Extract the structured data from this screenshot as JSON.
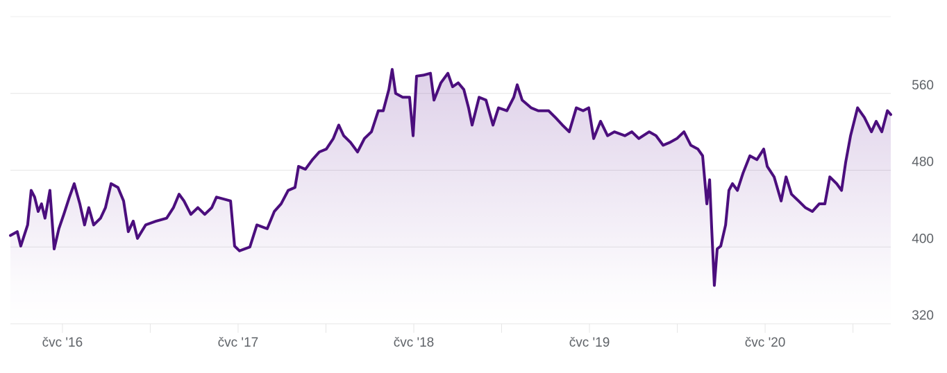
{
  "chart_data": {
    "type": "line",
    "series": [
      {
        "color": "#4b0e7d",
        "x": [
          2016.204,
          2016.243,
          2016.263,
          2016.302,
          2016.322,
          2016.342,
          2016.362,
          2016.381,
          2016.401,
          2016.429,
          2016.453,
          2016.48,
          2016.508,
          2016.54,
          2016.567,
          2016.599,
          2016.626,
          2016.65,
          2016.678,
          2016.717,
          2016.745,
          2016.777,
          2016.816,
          2016.848,
          2016.875,
          2016.903,
          2016.927,
          2016.974,
          2017.034,
          2017.093,
          2017.132,
          2017.164,
          2017.192,
          2017.231,
          2017.271,
          2017.31,
          2017.35,
          2017.377,
          2017.417,
          2017.457,
          2017.48,
          2017.508,
          2017.567,
          2017.607,
          2017.666,
          2017.706,
          2017.745,
          2017.785,
          2017.824,
          2017.844,
          2017.883,
          2017.923,
          2017.962,
          2018.002,
          2018.042,
          2018.073,
          2018.101,
          2018.14,
          2018.18,
          2018.219,
          2018.259,
          2018.298,
          2018.326,
          2018.358,
          2018.377,
          2018.397,
          2018.437,
          2018.476,
          2018.496,
          2018.516,
          2018.555,
          2018.595,
          2018.615,
          2018.654,
          2018.694,
          2018.721,
          2018.753,
          2018.785,
          2018.812,
          2018.832,
          2018.872,
          2018.911,
          2018.951,
          2018.982,
          2019.03,
          2019.069,
          2019.089,
          2019.117,
          2019.168,
          2019.208,
          2019.267,
          2019.306,
          2019.346,
          2019.385,
          2019.425,
          2019.464,
          2019.496,
          2019.524,
          2019.563,
          2019.603,
          2019.642,
          2019.702,
          2019.741,
          2019.781,
          2019.84,
          2019.879,
          2019.919,
          2019.958,
          2019.998,
          2020.038,
          2020.077,
          2020.117,
          2020.144,
          2020.168,
          2020.184,
          2020.196,
          2020.211,
          2020.227,
          2020.247,
          2020.275,
          2020.294,
          2020.314,
          2020.342,
          2020.374,
          2020.413,
          2020.453,
          2020.492,
          2020.512,
          2020.551,
          2020.591,
          2020.619,
          2020.65,
          2020.69,
          2020.729,
          2020.769,
          2020.808,
          2020.84,
          2020.868,
          2020.907,
          2020.935,
          2020.958,
          2020.986,
          2021.026,
          2021.065,
          2021.105,
          2021.132,
          2021.164,
          2021.196,
          2021.215
        ],
        "values": [
          412,
          416,
          401,
          423,
          459,
          452,
          437,
          445,
          430,
          459,
          398,
          419,
          434,
          452,
          466,
          445,
          423,
          441,
          423,
          430,
          441,
          466,
          462,
          448,
          416,
          427,
          409,
          423,
          427,
          430,
          441,
          455,
          448,
          434,
          441,
          434,
          441,
          452,
          450,
          448,
          401,
          396,
          400,
          423,
          419,
          437,
          445,
          459,
          462,
          484,
          481,
          491,
          499,
          502,
          513,
          527,
          516,
          509,
          499,
          513,
          520,
          542,
          542,
          564,
          585,
          560,
          556,
          556,
          516,
          578,
          579,
          581,
          553,
          571,
          581,
          567,
          571,
          564,
          545,
          527,
          556,
          553,
          527,
          545,
          542,
          556,
          569,
          553,
          545,
          542,
          542,
          535,
          527,
          520,
          545,
          542,
          545,
          513,
          531,
          516,
          520,
          516,
          520,
          513,
          520,
          516,
          506,
          509,
          513,
          520,
          506,
          502,
          495,
          445,
          470,
          419,
          360,
          398,
          401,
          423,
          459,
          466,
          459,
          477,
          495,
          491,
          502,
          484,
          473,
          448,
          473,
          455,
          448,
          441,
          437,
          445,
          445,
          473,
          466,
          459,
          488,
          516,
          545,
          535,
          520,
          531,
          520,
          542,
          538
        ]
      }
    ],
    "xlim": [
      2016.204,
      2021.215
    ],
    "xticks": [
      {
        "value": 2016.5,
        "label": "čvc '16"
      },
      {
        "value": 2017.5,
        "label": "čvc '17"
      },
      {
        "value": 2018.5,
        "label": "čvc '18"
      },
      {
        "value": 2019.5,
        "label": "čvc '19"
      },
      {
        "value": 2020.5,
        "label": "čvc '20"
      }
    ],
    "minor_xticks": [
      2017,
      2018,
      2019,
      2020,
      2021
    ],
    "ylim": [
      320,
      640
    ],
    "yticks": [
      320,
      400,
      480,
      560
    ],
    "grid": true
  }
}
